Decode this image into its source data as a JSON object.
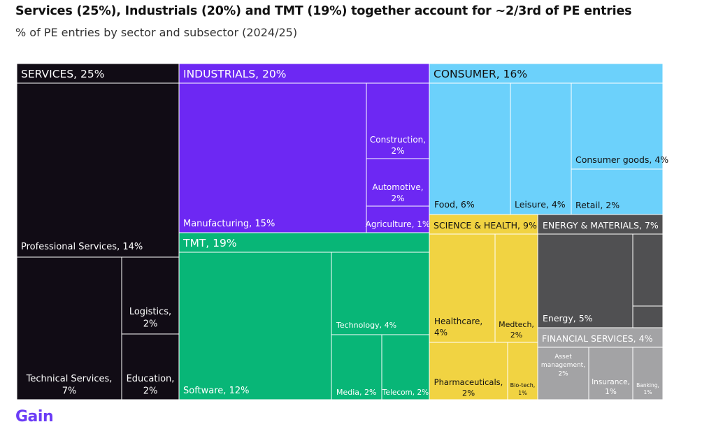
{
  "header": {
    "title": "Services (25%), Industrials (20%) and TMT (19%) together account for ~2/3rd of PE entries",
    "subtitle": "% of PE entries by sector and subsector (2024/25)"
  },
  "brand": {
    "logo_text": "Gain",
    "logo_color": "#6b3cf6"
  },
  "chart_data": {
    "type": "treemap",
    "unit": "% of PE entries",
    "sectors": [
      {
        "name": "SERVICES",
        "value": 25,
        "header": "SERVICES, 25%",
        "color": "#110c15",
        "subsectors": [
          {
            "name": "Professional Services",
            "value": 14,
            "label": [
              "Professional Services, 14%"
            ]
          },
          {
            "name": "Technical Services",
            "value": 7,
            "label": [
              "Technical Services,",
              "7%"
            ]
          },
          {
            "name": "Logistics",
            "value": 2,
            "label": [
              "Logistics,",
              "2%"
            ]
          },
          {
            "name": "Education",
            "value": 2,
            "label": [
              "Education,",
              "2%"
            ]
          }
        ]
      },
      {
        "name": "INDUSTRIALS",
        "value": 20,
        "header": "INDUSTRIALS, 20%",
        "color": "#6d28f3",
        "subsectors": [
          {
            "name": "Manufacturing",
            "value": 15,
            "label": [
              "Manufacturing, 15%"
            ]
          },
          {
            "name": "Construction",
            "value": 2,
            "label": [
              "Construction,",
              "2%"
            ]
          },
          {
            "name": "Automotive",
            "value": 2,
            "label": [
              "Automotive,",
              "2%"
            ]
          },
          {
            "name": "Agriculture",
            "value": 1,
            "label": [
              "Agriculture, 1%"
            ]
          }
        ]
      },
      {
        "name": "CONSUMER",
        "value": 16,
        "header": "CONSUMER, 16%",
        "color": "#6cd1fb",
        "subsectors": [
          {
            "name": "Food",
            "value": 6,
            "label": [
              "Food, 6%"
            ]
          },
          {
            "name": "Leisure",
            "value": 4,
            "label": [
              "Leisure, 4%"
            ]
          },
          {
            "name": "Consumer goods",
            "value": 4,
            "label": [
              "Consumer goods, 4%"
            ]
          },
          {
            "name": "Retail",
            "value": 2,
            "label": [
              "Retail, 2%"
            ]
          }
        ]
      },
      {
        "name": "TMT",
        "value": 19,
        "header": "TMT, 19%",
        "color": "#08b677",
        "subsectors": [
          {
            "name": "Software",
            "value": 12,
            "label": [
              "Software, 12%"
            ]
          },
          {
            "name": "Technology",
            "value": 4,
            "label": [
              "Technology, 4%"
            ]
          },
          {
            "name": "Media",
            "value": 2,
            "label": [
              "Media, 2%"
            ]
          },
          {
            "name": "Telecom",
            "value": 2,
            "label": [
              "Telecom, 2%"
            ]
          }
        ]
      },
      {
        "name": "SCIENCE & HEALTH",
        "value": 9,
        "header": "SCIENCE & HEALTH, 9%",
        "color": "#f1d342",
        "subsectors": [
          {
            "name": "Healthcare",
            "value": 4,
            "label": [
              "Healthcare,",
              "4%"
            ]
          },
          {
            "name": "Medtech",
            "value": 2,
            "label": [
              "Medtech,",
              "2%"
            ]
          },
          {
            "name": "Pharmaceuticals",
            "value": 2,
            "label": [
              "Pharmaceuticals,",
              "2%"
            ]
          },
          {
            "name": "Bio-tech",
            "value": 1,
            "label": [
              "Bio-tech,",
              "1%"
            ]
          }
        ]
      },
      {
        "name": "ENERGY & MATERIALS",
        "value": 7,
        "header": "ENERGY & MATERIALS, 7%",
        "color": "#505052",
        "subsectors": [
          {
            "name": "Energy",
            "value": 5,
            "label": [
              "Energy, 5%"
            ]
          },
          {
            "name": "unlabeled-1",
            "value": null,
            "label": []
          },
          {
            "name": "unlabeled-2",
            "value": null,
            "label": []
          }
        ]
      },
      {
        "name": "FINANCIAL SERVICES",
        "value": 4,
        "header": "FINANCIAL SERVICES, 4%",
        "color": "#a3a3a5",
        "subsectors": [
          {
            "name": "Asset management",
            "value": 2,
            "label": [
              "Asset",
              "management,",
              "2%"
            ]
          },
          {
            "name": "Insurance",
            "value": 1,
            "label": [
              "Insurance,",
              "1%"
            ]
          },
          {
            "name": "Banking",
            "value": 1,
            "label": [
              "Banking,",
              "1%"
            ]
          }
        ]
      }
    ]
  }
}
